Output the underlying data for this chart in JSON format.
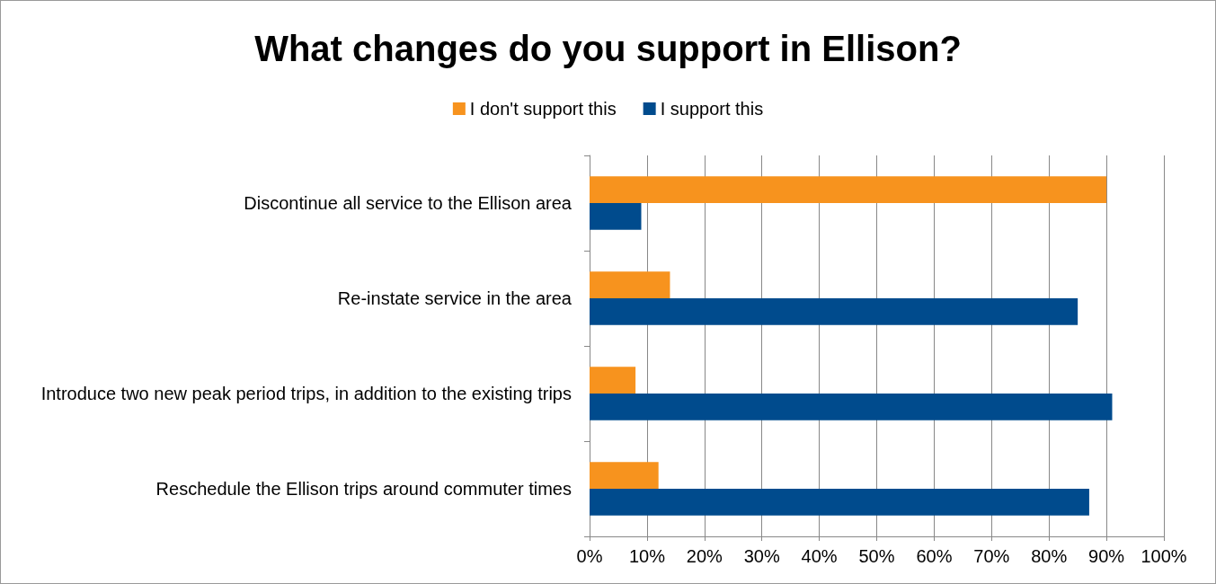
{
  "chart_data": {
    "type": "bar",
    "orientation": "horizontal",
    "title": "What changes do you support in Ellison?",
    "categories": [
      "Discontinue all service to the Ellison area",
      "Re-instate service in the area",
      "Introduce two new peak period trips, in addition to the existing trips",
      "Reschedule the Ellison trips around commuter times"
    ],
    "series": [
      {
        "name": "I don't support this",
        "color": "#f7931e",
        "values": [
          90,
          14,
          8,
          12
        ]
      },
      {
        "name": "I support this",
        "color": "#004b8d",
        "values": [
          9,
          85,
          91,
          87
        ]
      }
    ],
    "xlim": [
      0,
      100
    ],
    "xticks": [
      {
        "value": 0,
        "label": "0%"
      },
      {
        "value": 10,
        "label": "10%"
      },
      {
        "value": 20,
        "label": "20%"
      },
      {
        "value": 30,
        "label": "30%"
      },
      {
        "value": 40,
        "label": "40%"
      },
      {
        "value": 50,
        "label": "50%"
      },
      {
        "value": 60,
        "label": "60%"
      },
      {
        "value": 70,
        "label": "70%"
      },
      {
        "value": 80,
        "label": "80%"
      },
      {
        "value": 90,
        "label": "90%"
      },
      {
        "value": 100,
        "label": "100%"
      }
    ],
    "grid": "x",
    "legend": "top"
  }
}
